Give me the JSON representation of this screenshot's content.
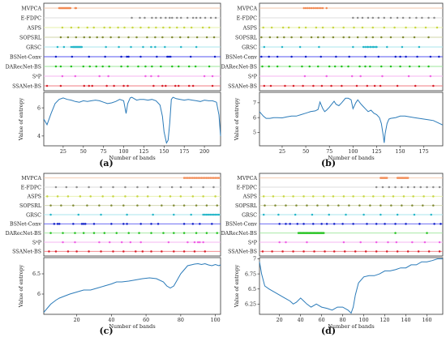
{
  "chart_data": [
    {
      "type": "scatter+line",
      "caption": "(a)",
      "methods": [
        "MVPCA",
        "E-FDPC",
        "ASPS",
        "SOPSRL",
        "GRSC",
        "BSNet-Conv",
        "DARecNet-BS",
        "S⁴P",
        "SSANet-BS"
      ],
      "method_colors": [
        "#f28a53",
        "#8c8c8c",
        "#c8d640",
        "#7f8a33",
        "#26b7c9",
        "#1020c8",
        "#23c21e",
        "#f062e6",
        "#d9202a"
      ],
      "method_line_colors": [
        "#f2c5aa",
        "#dddddd",
        "#e6f0a8",
        "#cfd4aa",
        "#a9e4ee",
        "#5555f0",
        "#9be59a",
        "#f6b5f2",
        "#f07b80"
      ],
      "selected_bands": [
        [
          20,
          21,
          22,
          23,
          24,
          25,
          26,
          27,
          28,
          29,
          30,
          31,
          32,
          33,
          34,
          40,
          41
        ],
        [
          110,
          120,
          126,
          135,
          140,
          146,
          152,
          157,
          160,
          166,
          171,
          179,
          186,
          190,
          195,
          201,
          208,
          214
        ],
        [
          24,
          35,
          44,
          55,
          63,
          76,
          83,
          93,
          101,
          111,
          121,
          131,
          140,
          149,
          157,
          166,
          175,
          184,
          198,
          206
        ],
        [
          22,
          31,
          41,
          51,
          58,
          67,
          74,
          84,
          94,
          106,
          116,
          129,
          139,
          148,
          160,
          170,
          180,
          191,
          203,
          212
        ],
        [
          18,
          26,
          35,
          37,
          38,
          39,
          40,
          41,
          42,
          43,
          44,
          45,
          46,
          47,
          48,
          78,
          94,
          109,
          124,
          134,
          139,
          151,
          171,
          190
        ],
        [
          16,
          36,
          57,
          77,
          97,
          104,
          106,
          121,
          141,
          154,
          156,
          158,
          183,
          213
        ],
        [
          16,
          22,
          35,
          50,
          58,
          66,
          74,
          82,
          97,
          105,
          118,
          127,
          135,
          146,
          160,
          168,
          181,
          189,
          206
        ],
        [
          24,
          40,
          70,
          81,
          127,
          134,
          143,
          200,
          210
        ],
        [
          5,
          22,
          51,
          57,
          61,
          79,
          88,
          100,
          105,
          137,
          148,
          152,
          164,
          168,
          181,
          186,
          210
        ]
      ],
      "curve": {
        "x": [
          1,
          5,
          10,
          15,
          20,
          25,
          30,
          35,
          40,
          45,
          50,
          55,
          60,
          65,
          70,
          75,
          80,
          85,
          90,
          95,
          100,
          103,
          105,
          108,
          110,
          113,
          116,
          120,
          125,
          130,
          135,
          140,
          145,
          148,
          150,
          153,
          155,
          157,
          159,
          161,
          163,
          165,
          170,
          175,
          180,
          185,
          190,
          195,
          200,
          205,
          210,
          215,
          218,
          220
        ],
        "y": [
          5.2,
          4.8,
          5.6,
          6.3,
          6.6,
          6.7,
          6.6,
          6.55,
          6.45,
          6.4,
          6.5,
          6.45,
          6.5,
          6.55,
          6.5,
          6.4,
          6.3,
          6.35,
          6.45,
          6.6,
          6.5,
          5.6,
          6.3,
          6.7,
          6.75,
          6.65,
          6.55,
          6.6,
          6.6,
          6.55,
          6.6,
          6.5,
          6.2,
          5.4,
          4.3,
          3.5,
          3.7,
          4.9,
          6.6,
          6.75,
          6.7,
          6.65,
          6.6,
          6.55,
          6.6,
          6.55,
          6.5,
          6.45,
          6.55,
          6.5,
          6.5,
          6.4,
          5.5,
          4.0
        ]
      },
      "xlim": [
        1,
        220
      ],
      "ylim": [
        3.3,
        7.1
      ],
      "x_ticks": [
        25,
        50,
        75,
        100,
        125,
        150,
        175,
        200
      ],
      "y_ticks": [
        4,
        6
      ],
      "xlabel": "Number of bands",
      "ylabel": "Value of entropy"
    },
    {
      "type": "scatter+line",
      "caption": "(b)",
      "methods": [
        "MVPCA",
        "E-FDPC",
        "ASPS",
        "SOPSRL",
        "GRSC",
        "BSNet-Conv",
        "DARecNet-BS",
        "S⁴P",
        "SSANet-BS"
      ],
      "method_colors": [
        "#f28a53",
        "#8c8c8c",
        "#c8d640",
        "#7f8a33",
        "#26b7c9",
        "#1020c8",
        "#23c21e",
        "#f062e6",
        "#d9202a"
      ],
      "method_line_colors": [
        "#f2c5aa",
        "#dddddd",
        "#e6f0a8",
        "#cfd4aa",
        "#a9e4ee",
        "#5555f0",
        "#9be59a",
        "#f6b5f2",
        "#f07b80"
      ],
      "selected_bands": [
        [
          48,
          50,
          52,
          54,
          56,
          58,
          60,
          62,
          64,
          66,
          68,
          72
        ],
        [
          100,
          105,
          110,
          116,
          121,
          127,
          133,
          140,
          147,
          153,
          160,
          167,
          173,
          180,
          186
        ],
        [
          5,
          14,
          26,
          32,
          43,
          50,
          61,
          68,
          79,
          90,
          101,
          110,
          121,
          133,
          144,
          156,
          166,
          177,
          189
        ],
        [
          3,
          12,
          20,
          27,
          35,
          45,
          56,
          63,
          69,
          79,
          90,
          96,
          105,
          114,
          121,
          130,
          140,
          153,
          165,
          180
        ],
        [
          6,
          25,
          44,
          64,
          100,
          111,
          113,
          115,
          116,
          118,
          119,
          121,
          122,
          124,
          125,
          136,
          152,
          170
        ],
        [
          3,
          11,
          20,
          35,
          50,
          66,
          82,
          96,
          113,
          127,
          145,
          150,
          156,
          168,
          182,
          191
        ],
        [
          4,
          11,
          20,
          33,
          46,
          54,
          63,
          75,
          81,
          88,
          95,
          107,
          113,
          118,
          130,
          140,
          150,
          160,
          170,
          180
        ],
        [
          49,
          72,
          99,
          108,
          131,
          159,
          182
        ],
        [
          6,
          13,
          28,
          37,
          47,
          58,
          67,
          77,
          88,
          104,
          115,
          123,
          129,
          147,
          166,
          185
        ]
      ],
      "curve": {
        "x": [
          1,
          5,
          8,
          12,
          16,
          20,
          25,
          30,
          35,
          40,
          45,
          50,
          55,
          60,
          63,
          65,
          68,
          70,
          72,
          75,
          78,
          80,
          82,
          85,
          88,
          92,
          95,
          98,
          100,
          103,
          105,
          108,
          110,
          113,
          116,
          119,
          122,
          125,
          128,
          130,
          132,
          133,
          134,
          136,
          138,
          140,
          145,
          150,
          155,
          160,
          165,
          170,
          175,
          180,
          185,
          190,
          195
        ],
        "y": [
          6.4,
          6.1,
          5.95,
          5.95,
          6.0,
          6.0,
          5.98,
          6.05,
          6.1,
          6.1,
          6.2,
          6.3,
          6.4,
          6.45,
          6.55,
          7.05,
          6.6,
          6.4,
          6.5,
          6.7,
          6.95,
          7.1,
          6.9,
          6.8,
          7.0,
          7.3,
          7.3,
          7.2,
          6.6,
          7.0,
          7.2,
          6.95,
          6.8,
          6.6,
          6.4,
          6.5,
          6.3,
          6.2,
          6.0,
          5.6,
          4.8,
          4.3,
          4.9,
          5.6,
          5.9,
          5.95,
          6.0,
          6.1,
          6.1,
          6.05,
          6.0,
          5.95,
          5.9,
          5.85,
          5.8,
          5.65,
          5.5
        ]
      },
      "xlim": [
        1,
        195
      ],
      "ylim": [
        4.1,
        7.7
      ],
      "x_ticks": [
        25,
        50,
        75,
        100,
        125,
        150,
        175
      ],
      "y_ticks": [
        5,
        6,
        7
      ],
      "xlabel": "Number of bands",
      "ylabel": "Value of entropy"
    },
    {
      "type": "scatter+line",
      "caption": "(c)",
      "methods": [
        "MVPCA",
        "E-FDPC",
        "ASPS",
        "SOPSRL",
        "GRSC",
        "BSNet-Conv",
        "DARecNet-BS",
        "S⁴P",
        "SSANet-BS"
      ],
      "method_colors": [
        "#f28a53",
        "#8c8c8c",
        "#c8d640",
        "#7f8a33",
        "#26b7c9",
        "#1020c8",
        "#23c21e",
        "#f062e6",
        "#d9202a"
      ],
      "method_line_colors": [
        "#f2c5aa",
        "#dddddd",
        "#e6f0a8",
        "#cfd4aa",
        "#a9e4ee",
        "#5555f0",
        "#9be59a",
        "#f6b5f2",
        "#f07b80"
      ],
      "selected_bands": [
        [
          82,
          83,
          84,
          85,
          86,
          87,
          88,
          89,
          90,
          91,
          92,
          93,
          94,
          95,
          96,
          97,
          98,
          99,
          100,
          101,
          102
        ],
        [
          8,
          14,
          20,
          27,
          34,
          41,
          48,
          55,
          61,
          68,
          75,
          80,
          86,
          93,
          99
        ],
        [
          3,
          9,
          15,
          22,
          28,
          35,
          41,
          48,
          55,
          61,
          68,
          74,
          80,
          87,
          93,
          100
        ],
        [
          5,
          11,
          18,
          26,
          33,
          40,
          47,
          55,
          62,
          69,
          76,
          82,
          89,
          95,
          101
        ],
        [
          5,
          21,
          34,
          49,
          64,
          76,
          86,
          93,
          94,
          95,
          96,
          97,
          98,
          99,
          100,
          101,
          102
        ],
        [
          7,
          9,
          10,
          18,
          23,
          24,
          25,
          30,
          40,
          47,
          49,
          57,
          63,
          67,
          82,
          87,
          91,
          98
        ],
        [
          5,
          12,
          19,
          24,
          30,
          36,
          43,
          50,
          56,
          63,
          70,
          76,
          82,
          89,
          95,
          101
        ],
        [
          12,
          19,
          33,
          39,
          46,
          51,
          57,
          73,
          84,
          88,
          90,
          91,
          93
        ],
        [
          4,
          8,
          15,
          20,
          27,
          34,
          41,
          47,
          54,
          58,
          63,
          69,
          76,
          82,
          88,
          94
        ]
      ],
      "curve": {
        "x": [
          1,
          3,
          5,
          8,
          10,
          13,
          16,
          20,
          24,
          28,
          32,
          36,
          40,
          43,
          46,
          50,
          54,
          58,
          62,
          66,
          70,
          72,
          74,
          76,
          78,
          80,
          82,
          84,
          86,
          88,
          90,
          92,
          94,
          96,
          98,
          100,
          102,
          103
        ],
        "y": [
          5.55,
          5.65,
          5.75,
          5.85,
          5.9,
          5.95,
          6.0,
          6.05,
          6.1,
          6.1,
          6.15,
          6.2,
          6.25,
          6.3,
          6.3,
          6.32,
          6.35,
          6.38,
          6.4,
          6.38,
          6.3,
          6.2,
          6.15,
          6.2,
          6.35,
          6.5,
          6.6,
          6.7,
          6.72,
          6.74,
          6.75,
          6.73,
          6.75,
          6.72,
          6.7,
          6.73,
          6.7,
          6.72
        ]
      },
      "xlim": [
        1,
        103
      ],
      "ylim": [
        5.5,
        6.9
      ],
      "x_ticks": [
        20,
        40,
        60,
        80,
        100
      ],
      "y_ticks": [
        6.0,
        6.5
      ],
      "xlabel": "Number of bands",
      "ylabel": "Value of entropy"
    },
    {
      "type": "scatter+line",
      "caption": "(d)",
      "methods": [
        "MVPCA",
        "E-FDPC",
        "ASPS",
        "SOPSRL",
        "GRSC",
        "BSNet-Conv",
        "DARecNet-BS",
        "S⁴P",
        "SSANet-BS"
      ],
      "method_colors": [
        "#f28a53",
        "#8c8c8c",
        "#c8d640",
        "#7f8a33",
        "#26b7c9",
        "#1020c8",
        "#23c21e",
        "#f062e6",
        "#d9202a"
      ],
      "method_line_colors": [
        "#f2c5aa",
        "#dddddd",
        "#e6f0a8",
        "#cfd4aa",
        "#a9e4ee",
        "#5555f0",
        "#9be59a",
        "#f6b5f2",
        "#f07b80"
      ],
      "selected_bands": [
        [
          116,
          117,
          118,
          119,
          120,
          121,
          122,
          132,
          133,
          134,
          135,
          136,
          137,
          138,
          139,
          140,
          141,
          142
        ],
        [
          112,
          118,
          124,
          130,
          136,
          142,
          148,
          154,
          160,
          166,
          172
        ],
        [
          5,
          14,
          24,
          33,
          43,
          52,
          62,
          71,
          81,
          90,
          100,
          109,
          119,
          128,
          138,
          147,
          157,
          166
        ],
        [
          6,
          16,
          26,
          36,
          46,
          56,
          66,
          76,
          86,
          96,
          106,
          116,
          126,
          136,
          146,
          156,
          166
        ],
        [
          5,
          19,
          35,
          51,
          67,
          83,
          100,
          116,
          132,
          148,
          164
        ],
        [
          20,
          26,
          30,
          37,
          43,
          52,
          60,
          65,
          72,
          80,
          90,
          103,
          112,
          120,
          130,
          140,
          153,
          167,
          173
        ],
        [
          38,
          39,
          40,
          41,
          42,
          43,
          44,
          45,
          46,
          47,
          48,
          49,
          50,
          51,
          52,
          53,
          54,
          55,
          56,
          57,
          58,
          59,
          60,
          61,
          62,
          130,
          160
        ],
        [
          20,
          26,
          46,
          81,
          97,
          112,
          123,
          131,
          146,
          158,
          172
        ],
        [
          4,
          13,
          23,
          33,
          43,
          53,
          63,
          72,
          82,
          92,
          102,
          112,
          122,
          132,
          142,
          152,
          162,
          172
        ]
      ],
      "curve": {
        "x": [
          1,
          3,
          6,
          10,
          15,
          20,
          25,
          30,
          33,
          36,
          40,
          43,
          46,
          50,
          55,
          60,
          65,
          70,
          75,
          80,
          85,
          88,
          90,
          92,
          95,
          100,
          105,
          110,
          115,
          120,
          125,
          130,
          135,
          140,
          145,
          150,
          155,
          160,
          165,
          170,
          175
        ],
        "y": [
          6.95,
          6.75,
          6.55,
          6.5,
          6.45,
          6.4,
          6.35,
          6.3,
          6.25,
          6.28,
          6.35,
          6.3,
          6.25,
          6.2,
          6.25,
          6.2,
          6.18,
          6.15,
          6.2,
          6.2,
          6.15,
          6.1,
          6.2,
          6.4,
          6.6,
          6.7,
          6.72,
          6.72,
          6.75,
          6.8,
          6.8,
          6.82,
          6.85,
          6.85,
          6.9,
          6.9,
          6.95,
          6.95,
          6.97,
          7.0,
          7.0
        ]
      },
      "xlim": [
        1,
        175
      ],
      "ylim": [
        6.08,
        7.02
      ],
      "x_ticks": [
        20,
        40,
        60,
        80,
        100,
        120,
        140,
        160
      ],
      "y_ticks": [
        6.25,
        6.5,
        6.75,
        7.0
      ],
      "xlabel": "Number of bands",
      "ylabel": "Value of entropy"
    }
  ]
}
